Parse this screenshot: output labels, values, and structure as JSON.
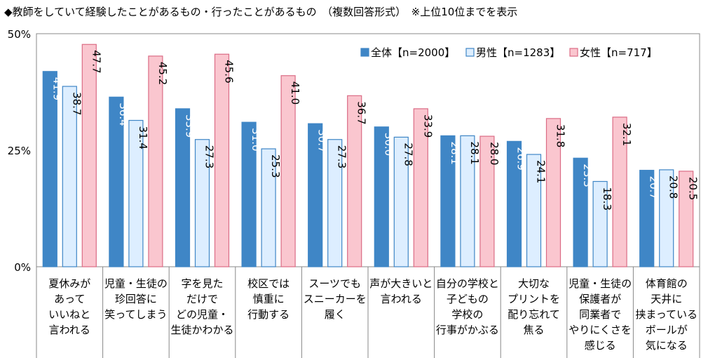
{
  "title": "◆教師をしていて経験したことがあるもの・行ったことがあるもの　（複数回答形式）　※上位10位までを表示",
  "chart_data": {
    "type": "bar",
    "title": "◆教師をしていて経験したことがあるもの・行ったことがあるもの　（複数回答形式）　※上位10位までを表示",
    "categories": [
      [
        "夏休みが",
        "あって",
        "いいねと",
        "言われる"
      ],
      [
        "児童・生徒の",
        "珍回答に",
        "笑ってしまう"
      ],
      [
        "字を見た",
        "だけで",
        "どの児童・",
        "生徒かわかる"
      ],
      [
        "校区では",
        "慎重に",
        "行動する"
      ],
      [
        "スーツでも",
        "スニーカーを",
        "履く"
      ],
      [
        "声が大きいと",
        "言われる"
      ],
      [
        "自分の学校と",
        "子どもの",
        "学校の",
        "行事がかぶる"
      ],
      [
        "大切な",
        "プリントを",
        "配り忘れて",
        "焦る"
      ],
      [
        "児童・生徒の",
        "保護者が",
        "同業者で",
        "やりにくさを",
        "感じる"
      ],
      [
        "体育館の",
        "天井に",
        "挟まっている",
        "ボールが",
        "気になる"
      ]
    ],
    "series": [
      {
        "name": "全体【n=2000】",
        "color": "#3F86C6",
        "border": "#3F86C6",
        "labelColor": "#ffffff",
        "values": [
          41.9,
          36.4,
          33.9,
          31.0,
          30.7,
          30.0,
          28.1,
          26.9,
          23.3,
          20.7
        ]
      },
      {
        "name": "男性【n=1283】",
        "color": "#DDEEFF",
        "border": "#3F86C6",
        "labelColor": "#000000",
        "values": [
          38.7,
          31.4,
          27.3,
          25.3,
          27.3,
          27.8,
          28.1,
          24.1,
          18.3,
          20.8
        ]
      },
      {
        "name": "女性【n=717】",
        "color": "#FAC6CF",
        "border": "#DB6C85",
        "labelColor": "#000000",
        "values": [
          47.7,
          45.2,
          45.6,
          41.0,
          36.7,
          33.9,
          28.0,
          31.8,
          32.1,
          20.5
        ]
      }
    ],
    "yticks": [
      "0%",
      "25%",
      "50%"
    ],
    "ylim": [
      0,
      50
    ],
    "grid": false,
    "legend": "top-right"
  }
}
